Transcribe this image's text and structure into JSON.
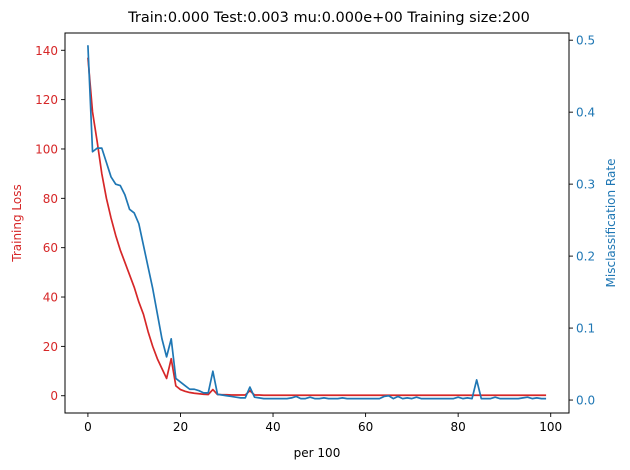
{
  "chart_data": {
    "type": "line",
    "title": "Train:0.000 Test:0.003 mu:0.000e+00 Training size:200",
    "xlabel": "per 100",
    "ylabel_left": "Training Loss",
    "ylabel_right": "Misclassification Rate",
    "xlim": [
      -4.95,
      103.95
    ],
    "ylim_left": [
      -7,
      147
    ],
    "ylim_right": [
      -0.018,
      0.51
    ],
    "x_ticks": [
      0,
      20,
      40,
      60,
      80,
      100
    ],
    "left_ticks": [
      0,
      20,
      40,
      60,
      80,
      100,
      120,
      140
    ],
    "right_ticks": [
      0.0,
      0.1,
      0.2,
      0.3,
      0.4,
      0.5
    ],
    "colors": {
      "left": "#d62728",
      "right": "#1f77b4"
    },
    "grid": false,
    "series": [
      {
        "axis": "left",
        "values": [
          137,
          115,
          103,
          90,
          80,
          72,
          65,
          59,
          54,
          49,
          44,
          38,
          33,
          26,
          20,
          15,
          11,
          7,
          15,
          4,
          2.5,
          1.8,
          1.3,
          1,
          0.8,
          0.6,
          0.5,
          2.5,
          0.5,
          0.4,
          0.4,
          0.3,
          0.3,
          0.3,
          0.3,
          2,
          0.3,
          0.3,
          0.2,
          0.2,
          0.2,
          0.2,
          0.2,
          0.2,
          0.2,
          0.2,
          0.2,
          0.2,
          0.2,
          0.2,
          0.2,
          0.2,
          0.2,
          0.2,
          0.2,
          0.2,
          0.2,
          0.2,
          0.2,
          0.2,
          0.2,
          0.2,
          0.2,
          0.2,
          0.2,
          0.2,
          0.2,
          0.2,
          0.2,
          0.2,
          0.2,
          0.2,
          0.2,
          0.2,
          0.2,
          0.2,
          0.2,
          0.2,
          0.2,
          0.2,
          0.2,
          0.2,
          0.2,
          0.2,
          0.2,
          0.2,
          0.2,
          0.2,
          0.2,
          0.2,
          0.2,
          0.2,
          0.2,
          0.2,
          0.2,
          0.2,
          0.2,
          0.2,
          0.2,
          0.2
        ]
      },
      {
        "axis": "right",
        "values": [
          0.493,
          0.345,
          0.35,
          0.35,
          0.33,
          0.31,
          0.3,
          0.298,
          0.285,
          0.265,
          0.26,
          0.245,
          0.215,
          0.185,
          0.155,
          0.12,
          0.085,
          0.06,
          0.085,
          0.03,
          0.025,
          0.02,
          0.015,
          0.015,
          0.013,
          0.01,
          0.01,
          0.04,
          0.008,
          0.007,
          0.006,
          0.005,
          0.004,
          0.003,
          0.003,
          0.018,
          0.004,
          0.003,
          0.002,
          0.002,
          0.002,
          0.002,
          0.002,
          0.002,
          0.003,
          0.005,
          0.002,
          0.002,
          0.004,
          0.002,
          0.002,
          0.003,
          0.002,
          0.002,
          0.002,
          0.003,
          0.002,
          0.002,
          0.002,
          0.002,
          0.002,
          0.002,
          0.002,
          0.002,
          0.005,
          0.006,
          0.002,
          0.005,
          0.002,
          0.003,
          0.002,
          0.004,
          0.002,
          0.002,
          0.002,
          0.002,
          0.002,
          0.002,
          0.002,
          0.002,
          0.004,
          0.002,
          0.003,
          0.002,
          0.028,
          0.002,
          0.002,
          0.002,
          0.004,
          0.002,
          0.002,
          0.002,
          0.002,
          0.002,
          0.003,
          0.004,
          0.002,
          0.003,
          0.002,
          0.002
        ]
      }
    ]
  }
}
